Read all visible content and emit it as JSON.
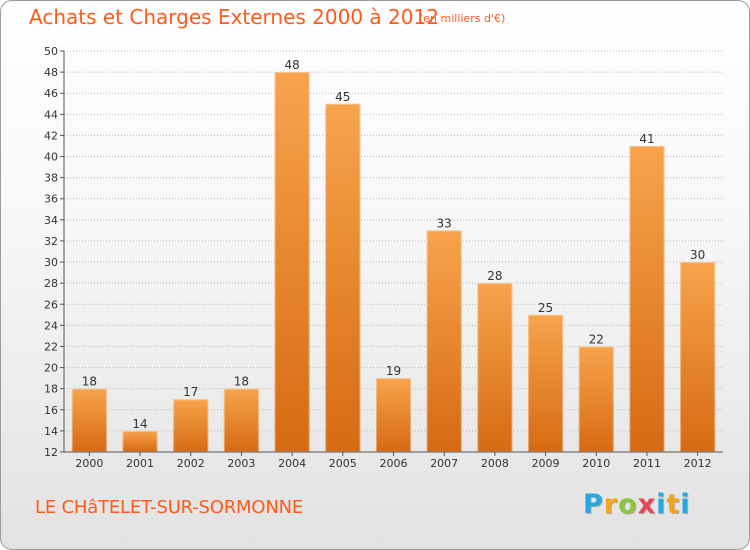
{
  "header": {
    "title": "Achats et Charges Externes 2000 à 2012",
    "unit": "(en milliers d'€)"
  },
  "footer": {
    "commune": "LE CHâTELET-SUR-SORMONNE",
    "brand": "Proxiti",
    "brand_colors": [
      "#27a8de",
      "#f7a21b",
      "#8cc63f",
      "#e8465a",
      "#27a8de",
      "#f7a21b"
    ]
  },
  "colors": {
    "bar_top": "#f7a44d",
    "bar_bottom": "#d66a12",
    "accent_text": "#ff5a19",
    "grid": "#b8b8b8"
  },
  "chart_data": {
    "type": "bar",
    "title": "Achats et Charges Externes 2000 à 2012",
    "xlabel": "",
    "ylabel": "",
    "categories": [
      "2000",
      "2001",
      "2002",
      "2003",
      "2004",
      "2005",
      "2006",
      "2007",
      "2008",
      "2009",
      "2010",
      "2011",
      "2012"
    ],
    "values": [
      18,
      14,
      17,
      18,
      48,
      45,
      19,
      33,
      28,
      25,
      22,
      41,
      30
    ],
    "ylim": [
      12,
      50
    ],
    "ytick_step": 2,
    "grid": "horizontal dotted",
    "data_labels": true
  }
}
